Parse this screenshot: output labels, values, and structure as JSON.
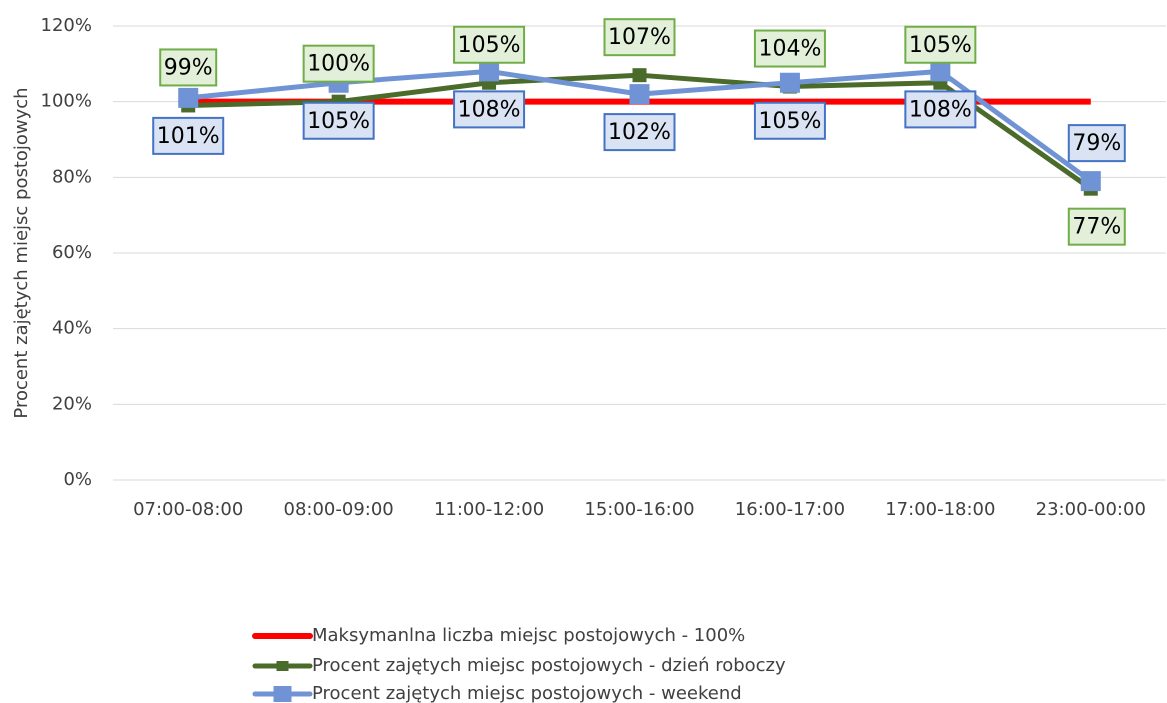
{
  "chart_data": {
    "type": "line",
    "y_label": "Procent zajętych miejsc postojowych",
    "categories": [
      "07:00-08:00",
      "08:00-09:00",
      "11:00-12:00",
      "15:00-16:00",
      "16:00-17:00",
      "17:00-18:00",
      "23:00-00:00"
    ],
    "series": [
      {
        "name": "Maksymanlna liczba miejsc postojowych - 100%",
        "color": "#ff0000",
        "values": [
          100,
          100,
          100,
          100,
          100,
          100,
          100
        ]
      },
      {
        "name": "Procent zajętych miejsc postojowych - dzień roboczy",
        "color": "#4a6b2a",
        "values": [
          99,
          100,
          105,
          107,
          104,
          105,
          77
        ],
        "value_labels": [
          "99%",
          "100%",
          "105%",
          "107%",
          "104%",
          "105%",
          "77%"
        ]
      },
      {
        "name": "Procent zajętych miejsc postojowych - weekend",
        "color": "#6f93d4",
        "values": [
          101,
          105,
          108,
          102,
          105,
          108,
          79
        ],
        "value_labels": [
          "101%",
          "105%",
          "108%",
          "102%",
          "105%",
          "108%",
          "79%"
        ]
      }
    ],
    "ylim": [
      0,
      120
    ],
    "yticks": [
      {
        "value": 0,
        "label": "0%"
      },
      {
        "value": 20,
        "label": "20%"
      },
      {
        "value": 40,
        "label": "40%"
      },
      {
        "value": 60,
        "label": "60%"
      },
      {
        "value": 80,
        "label": "80%"
      },
      {
        "value": 100,
        "label": "100%"
      },
      {
        "value": 120,
        "label": "120%"
      }
    ],
    "grid": true,
    "legend": "bottom"
  }
}
